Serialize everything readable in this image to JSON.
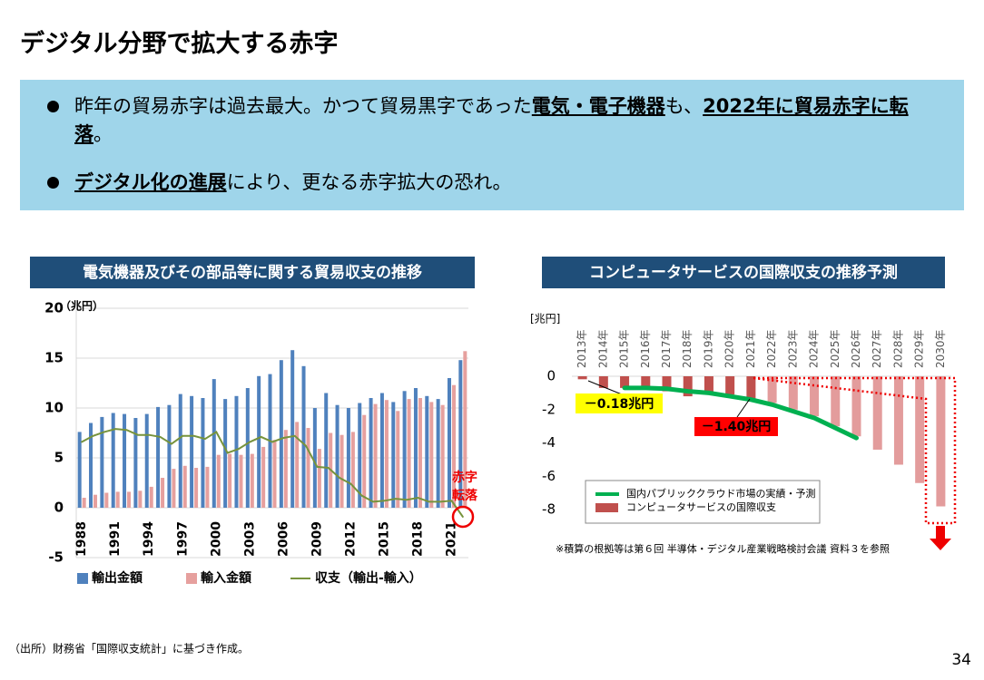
{
  "title": "デジタル分野で拡大する赤字",
  "bullets": [
    [
      {
        "text": "昨年の貿易赤字は過去最大。かつて貿易黒字であった",
        "strong": false
      },
      {
        "text": "電気・電子機器",
        "strong": true
      },
      {
        "text": "も、",
        "strong": false
      },
      {
        "text": "2022年に貿易赤字に転落",
        "strong": true
      },
      {
        "text": "。",
        "strong": false
      }
    ],
    [
      {
        "text": "デジタル化の進展",
        "strong": true
      },
      {
        "text": "により、更なる赤字拡大の恐れ。",
        "strong": false
      }
    ]
  ],
  "chart_data": [
    {
      "type": "bar",
      "title": "電気機器及びその部品等に関する貿易収支の推移",
      "ylabel": "（兆円）",
      "categories": [
        "1988",
        null,
        null,
        "1991",
        null,
        null,
        "1994",
        null,
        null,
        "1997",
        null,
        null,
        "2000",
        null,
        null,
        "2003",
        null,
        null,
        "2006",
        null,
        null,
        "2009",
        null,
        null,
        "2012",
        null,
        null,
        "2015",
        null,
        null,
        "2018",
        null,
        null,
        "2021",
        null
      ],
      "series": [
        {
          "name": "輸出金額",
          "type": "bar",
          "color": "#4f81bd",
          "values": [
            7.6,
            8.5,
            9.1,
            9.5,
            9.4,
            9.0,
            9.4,
            10.1,
            10.3,
            11.4,
            11.2,
            11.0,
            12.9,
            10.9,
            11.2,
            12.0,
            13.2,
            13.4,
            14.8,
            15.8,
            14.2,
            10.0,
            11.5,
            10.3,
            10.0,
            10.5,
            11.0,
            11.5,
            10.6,
            11.7,
            12.0,
            11.2,
            10.9,
            13.0,
            14.8
          ]
        },
        {
          "name": "輸入金額",
          "type": "bar",
          "color": "#e6a09e",
          "values": [
            1.0,
            1.3,
            1.5,
            1.6,
            1.6,
            1.7,
            2.1,
            3.0,
            3.9,
            4.2,
            4.0,
            4.1,
            5.3,
            5.4,
            5.3,
            5.4,
            6.1,
            6.8,
            7.8,
            8.6,
            8.0,
            5.9,
            7.5,
            7.3,
            7.6,
            9.3,
            10.4,
            10.8,
            9.7,
            10.9,
            11.0,
            10.6,
            10.3,
            12.3,
            15.7
          ]
        },
        {
          "name": "収支（輸出-輸入）",
          "type": "line",
          "color": "#77933c",
          "values": [
            6.6,
            7.2,
            7.6,
            7.9,
            7.8,
            7.3,
            7.3,
            7.1,
            6.4,
            7.2,
            7.2,
            6.9,
            7.6,
            5.5,
            5.9,
            6.6,
            7.1,
            6.6,
            7.0,
            7.2,
            6.2,
            4.1,
            4.0,
            3.0,
            2.4,
            1.2,
            0.6,
            0.7,
            0.9,
            0.8,
            1.0,
            0.6,
            0.6,
            0.7,
            -0.9
          ]
        }
      ],
      "ylim": [
        -5,
        20
      ],
      "yticks": [
        -5,
        0,
        5,
        10,
        15,
        20
      ],
      "grid": true,
      "legend": "bottom",
      "annotations": [
        "赤字",
        "転落"
      ]
    },
    {
      "type": "bar",
      "title": "コンピュータサービスの国際収支の推移予測",
      "ylabel": "[兆円]",
      "categories": [
        "2013年",
        "2014年",
        "2015年",
        "2016年",
        "2017年",
        "2018年",
        "2019年",
        "2020年",
        "2021年",
        "2022年",
        "2023年",
        "2024年",
        "2025年",
        "2026年",
        "2027年",
        "2028年",
        "2029年",
        "2030年"
      ],
      "series": [
        {
          "name": "国内パブリッククラウド市場の実績・予測",
          "type": "line",
          "color": "#00b050",
          "values": [
            null,
            null,
            -0.7,
            -0.7,
            -0.75,
            -0.9,
            -1.0,
            -1.2,
            -1.4,
            -1.7,
            -2.1,
            -2.5,
            -3.1,
            -3.7,
            null,
            null,
            null,
            null
          ]
        },
        {
          "name": "コンピュータサービスの国際収支",
          "type": "bar",
          "color": "#c0504d",
          "colors": [
            "#c0504d",
            "#c0504d",
            "#c0504d",
            "#c0504d",
            "#c0504d",
            "#c0504d",
            "#c0504d",
            "#c0504d",
            "#c0504d",
            "#e39c9c",
            "#e39c9c",
            "#e39c9c",
            "#e39c9c",
            "#e39c9c",
            "#e39c9c",
            "#e39c9c",
            "#e39c9c",
            "#e39c9c"
          ],
          "values": [
            -0.18,
            -0.7,
            -0.7,
            -0.8,
            -0.9,
            -1.2,
            -1.1,
            -1.1,
            -1.4,
            -1.6,
            -2.0,
            -2.4,
            -3.0,
            -3.6,
            -4.4,
            -5.3,
            -6.4,
            -7.8
          ]
        }
      ],
      "ylim": [
        -9,
        3.5
      ],
      "yticks": [
        -8,
        -6,
        -4,
        -2,
        0
      ],
      "grid": false,
      "legend": "lower left",
      "annotations": [
        "－0.18兆円",
        "－1.40兆円"
      ],
      "footnote": "※積算の根拠等は第６回 半導体・デジタル産業戦略検討会議 資料３を参照"
    }
  ],
  "source": "（出所）財務省「国際収支統計」に基づき作成。",
  "page_number": "34"
}
